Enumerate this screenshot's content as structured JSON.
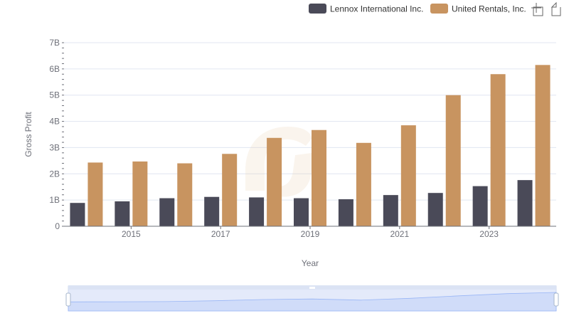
{
  "toolbar": {
    "zoom_icon": "zoom-select-icon",
    "restore_icon": "restore-icon"
  },
  "colors": {
    "lennox": "#4a4a58",
    "united": "#c89460",
    "grid": "#e0e6f1",
    "axis": "#6e7079"
  },
  "chart_data": {
    "type": "bar",
    "xlabel": "Year",
    "ylabel": "Gross Profit",
    "categories": [
      "2014",
      "2015",
      "2016",
      "2017",
      "2018",
      "2019",
      "2020",
      "2021",
      "2022",
      "2023",
      "2024"
    ],
    "x_tick_labels": [
      "2015",
      "2017",
      "2019",
      "2021",
      "2023"
    ],
    "y_tick_labels": [
      "0",
      "1B",
      "2B",
      "3B",
      "4B",
      "5B",
      "6B",
      "7B"
    ],
    "ylim": [
      0,
      7000000000
    ],
    "grid": true,
    "legend_position": "top-right",
    "series": [
      {
        "name": "Lennox International Inc.",
        "values": [
          890000000,
          950000000,
          1070000000,
          1120000000,
          1100000000,
          1070000000,
          1030000000,
          1190000000,
          1270000000,
          1530000000,
          1760000000
        ]
      },
      {
        "name": "United Rentals, Inc.",
        "values": [
          2430000000,
          2470000000,
          2400000000,
          2760000000,
          3370000000,
          3670000000,
          3180000000,
          3850000000,
          5000000000,
          5800000000,
          6150000000
        ]
      }
    ]
  }
}
